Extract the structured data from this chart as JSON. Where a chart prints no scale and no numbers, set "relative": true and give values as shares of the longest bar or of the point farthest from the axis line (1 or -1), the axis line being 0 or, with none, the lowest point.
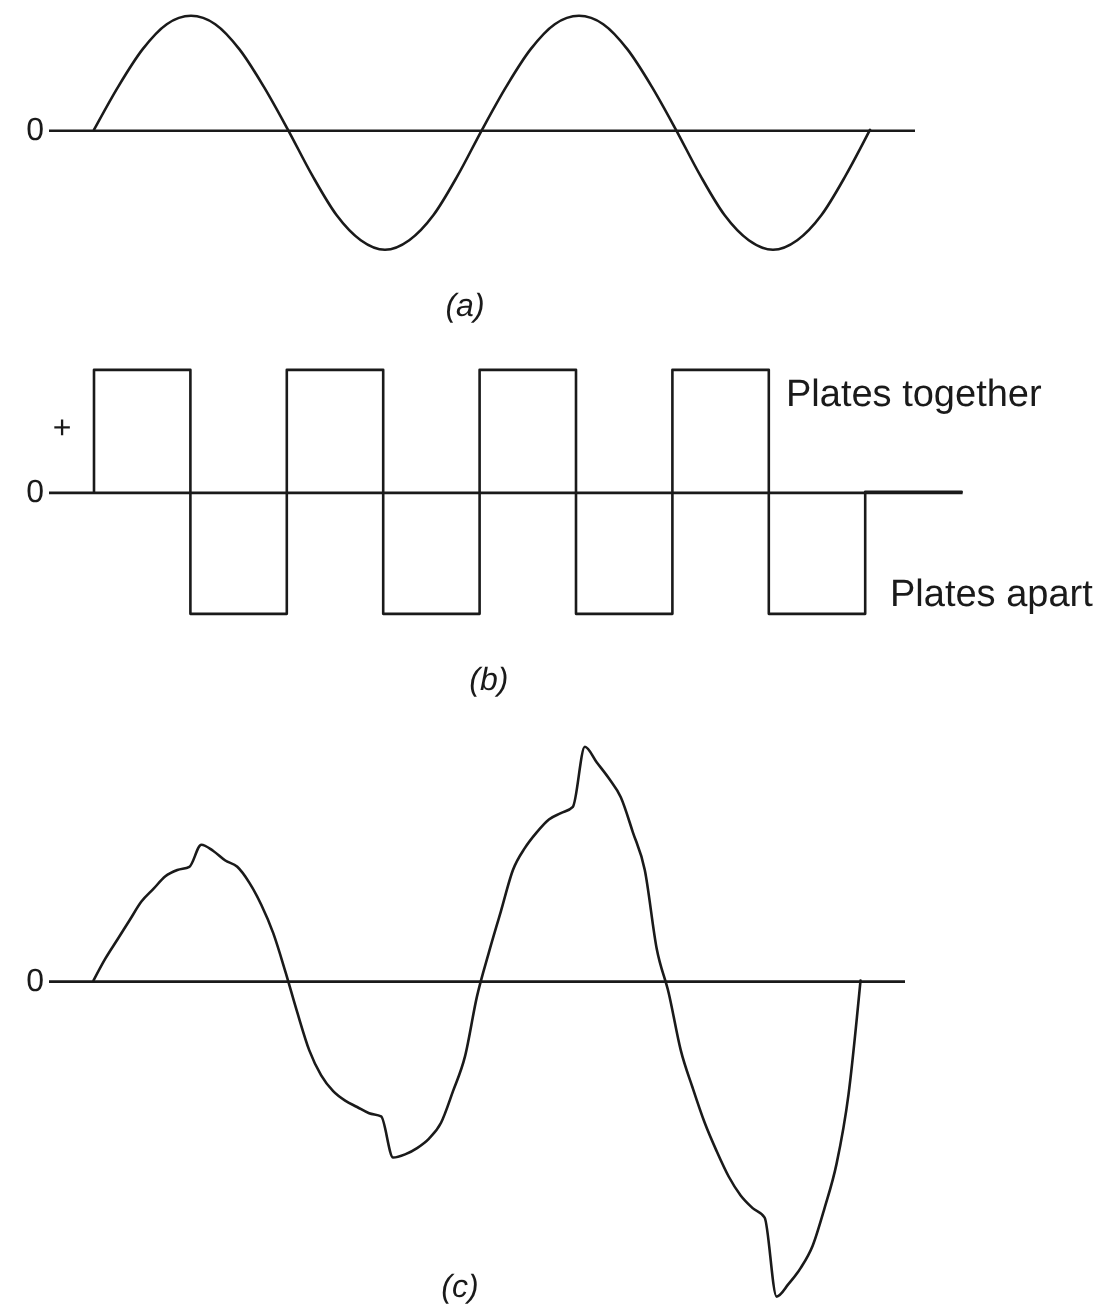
{
  "chart_data": [
    {
      "type": "line",
      "title": "(a)",
      "relative": true,
      "categories": [
        null,
        null,
        null,
        null,
        null,
        null,
        null,
        null,
        null,
        null,
        null,
        null,
        null,
        null,
        null,
        null,
        null,
        null,
        null,
        null,
        null,
        null,
        null,
        null,
        null,
        null,
        null,
        null,
        null,
        null,
        null,
        null,
        null
      ],
      "series": [
        {
          "color": "#1a1a1a",
          "values": [
            0,
            0.36,
            0.67,
            0.88,
            0.95,
            0.88,
            0.67,
            0.36,
            0,
            -0.38,
            -0.71,
            -0.92,
            -1,
            -0.92,
            -0.71,
            -0.38,
            0,
            0.36,
            0.67,
            0.88,
            0.95,
            0.88,
            0.67,
            0.36,
            0,
            -0.38,
            -0.71,
            -0.92,
            -1,
            -0.92,
            -0.71,
            -0.38,
            0
          ]
        }
      ],
      "annotations": [
        "0"
      ]
    },
    {
      "type": "step",
      "title": "(b)",
      "relative": true,
      "categories": [
        null,
        null,
        null,
        null,
        null,
        null,
        null,
        null,
        null,
        null
      ],
      "series": [
        {
          "color": "#1a1a1a",
          "values": [
            0,
            1,
            -1,
            1,
            -1,
            1,
            -1,
            1,
            -1,
            0
          ]
        }
      ],
      "annotations": [
        "+",
        "0",
        "Plates together",
        "Plates apart"
      ]
    },
    {
      "type": "line",
      "title": "(c)",
      "relative": true,
      "categories": [
        null,
        null,
        null,
        null,
        null,
        null,
        null,
        null,
        null,
        null,
        null,
        null,
        null,
        null,
        null,
        null,
        null,
        null,
        null,
        null,
        null,
        null,
        null,
        null,
        null,
        null,
        null,
        null,
        null,
        null,
        null,
        null,
        null,
        null,
        null,
        null,
        null,
        null,
        null,
        null,
        null,
        null,
        null,
        null,
        null,
        null,
        null,
        null,
        null,
        null,
        null,
        null,
        null,
        null,
        null,
        null,
        null,
        null,
        null,
        null,
        null,
        null,
        null,
        null,
        null
      ],
      "series": [
        {
          "color": "#1a1a1a",
          "values": [
            0,
            0.07,
            0.13,
            0.19,
            0.25,
            0.29,
            0.33,
            0.35,
            0.36,
            0.43,
            0.41,
            0.38,
            0.36,
            0.31,
            0.24,
            0.15,
            0.03,
            -0.1,
            -0.22,
            -0.3,
            -0.35,
            -0.38,
            -0.4,
            -0.42,
            -0.43,
            -0.56,
            -0.55,
            -0.53,
            -0.5,
            -0.45,
            -0.35,
            -0.24,
            -0.05,
            0.09,
            0.22,
            0.35,
            0.42,
            0.47,
            0.51,
            0.53,
            0.55,
            0.74,
            0.69,
            0.64,
            0.58,
            0.47,
            0.35,
            0.1,
            -0.04,
            -0.22,
            -0.34,
            -0.45,
            -0.54,
            -0.62,
            -0.68,
            -0.72,
            -0.75,
            -1,
            -0.96,
            -0.91,
            -0.84,
            -0.72,
            -0.58,
            -0.36,
            0
          ]
        }
      ],
      "annotations": [
        "0"
      ]
    }
  ]
}
